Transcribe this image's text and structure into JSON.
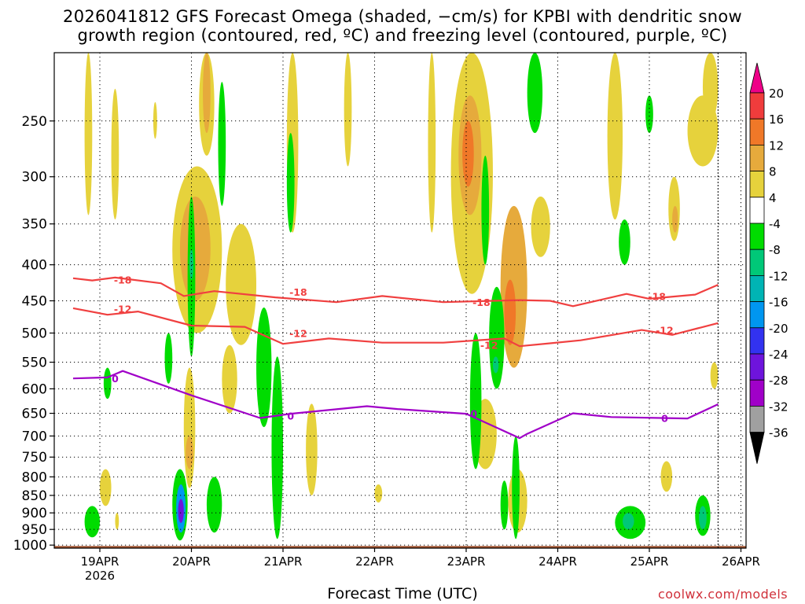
{
  "header": {
    "title_line1": "2026041812 GFS Forecast Omega (shaded, −cm/s) for KPBI with dendritic snow",
    "title_line2": "growth region (contoured, red, ºC) and freezing level (contoured, purple, ºC)"
  },
  "footer": {
    "credit": "coolwx.com/models"
  },
  "chart_data": {
    "type": "heatmap",
    "title": "2026041812 GFS Forecast Omega (shaded, −cm/s) for KPBI with dendritic snow growth region (contoured, red, ºC) and freezing level (contoured, purple, ºC)",
    "xlabel": "Forecast Time (UTC)",
    "ylabel": "",
    "x_range_hours": [
      0,
      168
    ],
    "x_ticks": [
      {
        "hour": 6,
        "label": "19APR",
        "sublabel": "2026"
      },
      {
        "hour": 30,
        "label": "20APR"
      },
      {
        "hour": 54,
        "label": "21APR"
      },
      {
        "hour": 78,
        "label": "22APR"
      },
      {
        "hour": 102,
        "label": "23APR"
      },
      {
        "hour": 126,
        "label": "24APR"
      },
      {
        "hour": 150,
        "label": "25APR"
      },
      {
        "hour": 174,
        "label": "26APR"
      }
    ],
    "y_ticks_hpa": [
      250,
      300,
      350,
      400,
      450,
      500,
      550,
      600,
      650,
      700,
      750,
      800,
      850,
      900,
      950,
      1000
    ],
    "y_range_hpa": [
      200,
      1010
    ],
    "grid": true,
    "colorbar": {
      "labels": [
        20,
        16,
        12,
        8,
        4,
        -4,
        -8,
        -12,
        -16,
        -20,
        -24,
        -28,
        -32,
        -36
      ],
      "colors": [
        "#ee0088",
        "#f03c3c",
        "#f07828",
        "#e6aa3c",
        "#e6d23c",
        "#ffffff",
        "#00dc00",
        "#00c878",
        "#00b4b4",
        "#0096f0",
        "#3232f0",
        "#6e14dc",
        "#a000c8",
        "#a0a0a0",
        "#000000"
      ]
    },
    "contours": [
      {
        "label": "-18",
        "color": "#f04040",
        "points": [
          [
            -1,
            418
          ],
          [
            4,
            421
          ],
          [
            10,
            417
          ],
          [
            22,
            425
          ],
          [
            28,
            443
          ],
          [
            36,
            436
          ],
          [
            52,
            445
          ],
          [
            68,
            452
          ],
          [
            80,
            443
          ],
          [
            96,
            452
          ],
          [
            116,
            449
          ],
          [
            124,
            450
          ],
          [
            130,
            458
          ],
          [
            144,
            440
          ],
          [
            150,
            447
          ],
          [
            162,
            441
          ],
          [
            168,
            427
          ]
        ]
      },
      {
        "label": "-12",
        "color": "#f04040",
        "points": [
          [
            -1,
            461
          ],
          [
            8,
            471
          ],
          [
            16,
            466
          ],
          [
            30,
            488
          ],
          [
            44,
            490
          ],
          [
            54,
            518
          ],
          [
            66,
            509
          ],
          [
            80,
            516
          ],
          [
            96,
            516
          ],
          [
            112,
            509
          ],
          [
            116,
            522
          ],
          [
            124,
            517
          ],
          [
            132,
            512
          ],
          [
            148,
            495
          ],
          [
            156,
            503
          ],
          [
            168,
            484
          ]
        ]
      },
      {
        "label": "0",
        "color": "#a000c8",
        "points": [
          [
            -1,
            580
          ],
          [
            8,
            578
          ],
          [
            12,
            566
          ],
          [
            30,
            613
          ],
          [
            48,
            660
          ],
          [
            56,
            651
          ],
          [
            76,
            635
          ],
          [
            84,
            641
          ],
          [
            102,
            651
          ],
          [
            116,
            705
          ],
          [
            118,
            695
          ],
          [
            130,
            650
          ],
          [
            140,
            658
          ],
          [
            160,
            661
          ],
          [
            168,
            631
          ]
        ]
      }
    ],
    "contour_labels": [
      {
        "text": "-18",
        "hour": 12,
        "hpa": 420
      },
      {
        "text": "-18",
        "hour": 58,
        "hpa": 437
      },
      {
        "text": "-18",
        "hour": 106,
        "hpa": 452
      },
      {
        "text": "-18",
        "hour": 152,
        "hpa": 443
      },
      {
        "text": "-12",
        "hour": 12,
        "hpa": 462
      },
      {
        "text": "-12",
        "hour": 58,
        "hpa": 500
      },
      {
        "text": "-12",
        "hour": 108,
        "hpa": 520
      },
      {
        "text": "-12",
        "hour": 154,
        "hpa": 495
      },
      {
        "text": "0",
        "hour": 10,
        "hpa": 580
      },
      {
        "text": "0",
        "hour": 56,
        "hpa": 655
      },
      {
        "text": "0",
        "hour": 104,
        "hpa": 650
      },
      {
        "text": "0",
        "hour": 154,
        "hpa": 660
      }
    ],
    "features": [
      {
        "c": "#e6d23c",
        "t0": 2,
        "t1": 4,
        "p0": 200,
        "p1": 340
      },
      {
        "c": "#e6d23c",
        "t0": 9,
        "t1": 11,
        "p0": 225,
        "p1": 345
      },
      {
        "c": "#e6d23c",
        "t0": 20,
        "t1": 21,
        "p0": 235,
        "p1": 265
      },
      {
        "c": "#e6d23c",
        "t0": 25,
        "t1": 38,
        "p0": 290,
        "p1": 500
      },
      {
        "c": "#e6aa3c",
        "t0": 27,
        "t1": 35,
        "p0": 320,
        "p1": 450
      },
      {
        "c": "#e6d23c",
        "t0": 32,
        "t1": 36,
        "p0": 200,
        "p1": 280
      },
      {
        "c": "#e6aa3c",
        "t0": 33,
        "t1": 35,
        "p0": 200,
        "p1": 260
      },
      {
        "c": "#00dc00",
        "t0": 29,
        "t1": 31,
        "p0": 320,
        "p1": 540
      },
      {
        "c": "#00c878",
        "t0": 29.5,
        "t1": 30.5,
        "p0": 380,
        "p1": 420
      },
      {
        "c": "#00dc00",
        "t0": 37,
        "t1": 39,
        "p0": 220,
        "p1": 330
      },
      {
        "c": "#e6d23c",
        "t0": 39,
        "t1": 47,
        "p0": 350,
        "p1": 520
      },
      {
        "c": "#00dc00",
        "t0": 47,
        "t1": 51,
        "p0": 460,
        "p1": 680
      },
      {
        "c": "#00dc00",
        "t0": 51,
        "t1": 54,
        "p0": 540,
        "p1": 980
      },
      {
        "c": "#e6d23c",
        "t0": 55,
        "t1": 58,
        "p0": 200,
        "p1": 360
      },
      {
        "c": "#00dc00",
        "t0": 55,
        "t1": 57,
        "p0": 260,
        "p1": 360
      },
      {
        "c": "#e6d23c",
        "t0": 60,
        "t1": 63,
        "p0": 630,
        "p1": 850
      },
      {
        "c": "#e6d23c",
        "t0": 70,
        "t1": 72,
        "p0": 200,
        "p1": 290
      },
      {
        "c": "#e6d23c",
        "t0": 92,
        "t1": 94,
        "p0": 200,
        "p1": 360
      },
      {
        "c": "#e6d23c",
        "t0": 98,
        "t1": 109,
        "p0": 200,
        "p1": 440
      },
      {
        "c": "#e6aa3c",
        "t0": 100,
        "t1": 106,
        "p0": 230,
        "p1": 340
      },
      {
        "c": "#f07828",
        "t0": 101,
        "t1": 104,
        "p0": 250,
        "p1": 310
      },
      {
        "c": "#e6d23c",
        "t0": 104,
        "t1": 110,
        "p0": 620,
        "p1": 780
      },
      {
        "c": "#00dc00",
        "t0": 103,
        "t1": 106,
        "p0": 500,
        "p1": 780
      },
      {
        "c": "#00dc00",
        "t0": 106,
        "t1": 108,
        "p0": 280,
        "p1": 400
      },
      {
        "c": "#e6aa3c",
        "t0": 111,
        "t1": 118,
        "p0": 330,
        "p1": 560
      },
      {
        "c": "#f07828",
        "t0": 112,
        "t1": 115,
        "p0": 420,
        "p1": 520
      },
      {
        "c": "#00dc00",
        "t0": 108,
        "t1": 112,
        "p0": 430,
        "p1": 600
      },
      {
        "c": "#00c878",
        "t0": 109,
        "t1": 110.5,
        "p0": 540,
        "p1": 570
      },
      {
        "c": "#e6d23c",
        "t0": 113,
        "t1": 118,
        "p0": 780,
        "p1": 960
      },
      {
        "c": "#00dc00",
        "t0": 111,
        "t1": 113,
        "p0": 810,
        "p1": 950
      },
      {
        "c": "#00dc00",
        "t0": 114,
        "t1": 116,
        "p0": 700,
        "p1": 980
      },
      {
        "c": "#00dc00",
        "t0": 118,
        "t1": 122,
        "p0": 200,
        "p1": 260
      },
      {
        "c": "#e6d23c",
        "t0": 119,
        "t1": 124,
        "p0": 320,
        "p1": 390
      },
      {
        "c": "#e6d23c",
        "t0": 139,
        "t1": 143,
        "p0": 200,
        "p1": 345
      },
      {
        "c": "#00dc00",
        "t0": 142,
        "t1": 145,
        "p0": 345,
        "p1": 400
      },
      {
        "c": "#00dc00",
        "t0": 141,
        "t1": 149,
        "p0": 880,
        "p1": 980
      },
      {
        "c": "#00c878",
        "t0": 143,
        "t1": 146,
        "p0": 900,
        "p1": 950
      },
      {
        "c": "#e6d23c",
        "t0": 155,
        "t1": 158,
        "p0": 300,
        "p1": 370
      },
      {
        "c": "#e6aa3c",
        "t0": 156,
        "t1": 157.5,
        "p0": 330,
        "p1": 360
      },
      {
        "c": "#e6d23c",
        "t0": 160,
        "t1": 168,
        "p0": 230,
        "p1": 290
      },
      {
        "c": "#e6d23c",
        "t0": 164,
        "t1": 168,
        "p0": 200,
        "p1": 250
      },
      {
        "c": "#00dc00",
        "t0": 149,
        "t1": 151,
        "p0": 230,
        "p1": 260
      },
      {
        "c": "#e6d23c",
        "t0": 153,
        "t1": 156,
        "p0": 760,
        "p1": 840
      },
      {
        "c": "#00dc00",
        "t0": 162,
        "t1": 166,
        "p0": 850,
        "p1": 970
      },
      {
        "c": "#00c878",
        "t0": 163,
        "t1": 165,
        "p0": 880,
        "p1": 950
      },
      {
        "c": "#e6d23c",
        "t0": 166,
        "t1": 168,
        "p0": 550,
        "p1": 600
      },
      {
        "c": "#00dc00",
        "t0": 2,
        "t1": 6,
        "p0": 880,
        "p1": 975
      },
      {
        "c": "#e6d23c",
        "t0": 6,
        "t1": 9,
        "p0": 780,
        "p1": 880
      },
      {
        "c": "#e6d23c",
        "t0": 10,
        "t1": 11,
        "p0": 900,
        "p1": 950
      },
      {
        "c": "#00dc00",
        "t0": 25,
        "t1": 29,
        "p0": 780,
        "p1": 985
      },
      {
        "c": "#0096f0",
        "t0": 26,
        "t1": 28.5,
        "p0": 820,
        "p1": 960
      },
      {
        "c": "#6e14dc",
        "t0": 26.5,
        "t1": 28,
        "p0": 860,
        "p1": 930
      },
      {
        "c": "#e6d23c",
        "t0": 28,
        "t1": 31,
        "p0": 560,
        "p1": 830
      },
      {
        "c": "#e6aa3c",
        "t0": 28.5,
        "t1": 30.5,
        "p0": 700,
        "p1": 780
      },
      {
        "c": "#00dc00",
        "t0": 34,
        "t1": 38,
        "p0": 800,
        "p1": 960
      },
      {
        "c": "#e6d23c",
        "t0": 38,
        "t1": 42,
        "p0": 520,
        "p1": 650
      },
      {
        "c": "#00dc00",
        "t0": 23,
        "t1": 25,
        "p0": 500,
        "p1": 590
      },
      {
        "c": "#e6d23c",
        "t0": 78,
        "t1": 80,
        "p0": 820,
        "p1": 870
      },
      {
        "c": "#00dc00",
        "t0": 7,
        "t1": 9,
        "p0": 560,
        "p1": 620
      }
    ],
    "ground": {
      "color": "#a0522d",
      "hpa": 1003
    },
    "boundary_hour": 168
  }
}
